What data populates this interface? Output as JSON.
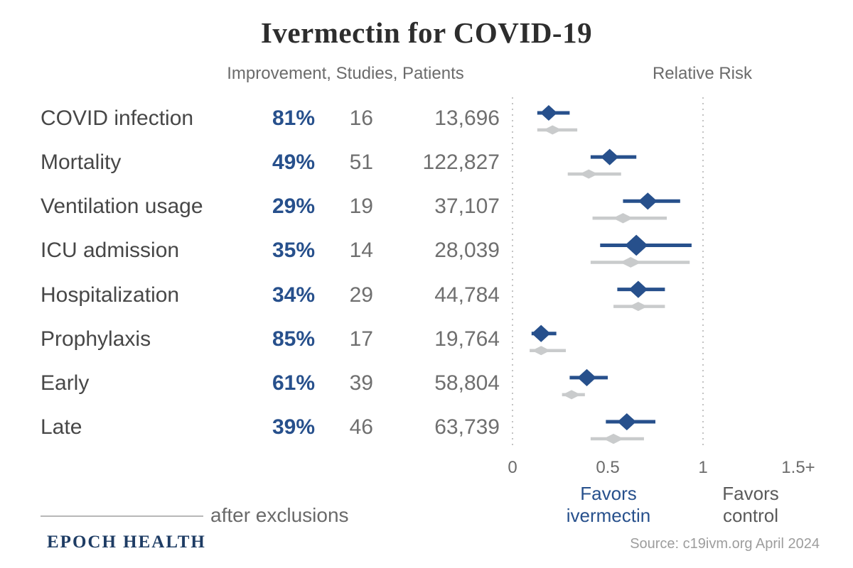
{
  "title": "Ivermectin for COVID-19",
  "table": {
    "header": "Improvement, Studies, Patients",
    "rows": [
      {
        "label": "COVID infection",
        "improvement": "81%",
        "studies": "16",
        "patients": "13,696"
      },
      {
        "label": "Mortality",
        "improvement": "49%",
        "studies": "51",
        "patients": "122,827"
      },
      {
        "label": "Ventilation usage",
        "improvement": "29%",
        "studies": "19",
        "patients": "37,107"
      },
      {
        "label": "ICU admission",
        "improvement": "35%",
        "studies": "14",
        "patients": "28,039"
      },
      {
        "label": "Hospitalization",
        "improvement": "34%",
        "studies": "29",
        "patients": "44,784"
      },
      {
        "label": "Prophylaxis",
        "improvement": "85%",
        "studies": "17",
        "patients": "19,764"
      },
      {
        "label": "Early",
        "improvement": "61%",
        "studies": "39",
        "patients": "58,804"
      },
      {
        "label": "Late",
        "improvement": "39%",
        "studies": "46",
        "patients": "63,739"
      }
    ]
  },
  "chart": {
    "header": "Relative Risk",
    "favors_ivermectin": {
      "line1": "Favors",
      "line2": "ivermectin"
    },
    "favors_control": {
      "line1": "Favors",
      "line2": "control"
    }
  },
  "chart_data": {
    "type": "forest",
    "title": "Relative Risk",
    "categories": [
      "COVID infection",
      "Mortality",
      "Ventilation usage",
      "ICU admission",
      "Hospitalization",
      "Prophylaxis",
      "Early",
      "Late"
    ],
    "x_axis": {
      "label_ticks": [
        {
          "value": 0,
          "label": "0"
        },
        {
          "value": 0.5,
          "label": "0.5"
        },
        {
          "value": 1,
          "label": "1"
        },
        {
          "value": 1.5,
          "label": "1.5+"
        }
      ],
      "range": [
        0,
        1.65
      ],
      "dashed_gridlines": [
        0,
        1
      ]
    },
    "series": [
      {
        "name": "primary",
        "color": "#27508c",
        "points": [
          {
            "rr": 0.19,
            "ci": [
              0.13,
              0.3
            ],
            "scale": 1.0
          },
          {
            "rr": 0.51,
            "ci": [
              0.41,
              0.65
            ],
            "scale": 1.05
          },
          {
            "rr": 0.71,
            "ci": [
              0.58,
              0.88
            ],
            "scale": 1.1
          },
          {
            "rr": 0.65,
            "ci": [
              0.46,
              0.94
            ],
            "scale": 1.35
          },
          {
            "rr": 0.66,
            "ci": [
              0.55,
              0.8
            ],
            "scale": 1.1
          },
          {
            "rr": 0.15,
            "ci": [
              0.1,
              0.23
            ],
            "scale": 1.1
          },
          {
            "rr": 0.39,
            "ci": [
              0.3,
              0.5
            ],
            "scale": 1.1
          },
          {
            "rr": 0.6,
            "ci": [
              0.49,
              0.75
            ],
            "scale": 1.1
          }
        ]
      },
      {
        "name": "after exclusions",
        "color": "#c9cbcc",
        "points": [
          {
            "rr": 0.21,
            "ci": [
              0.13,
              0.34
            ],
            "scale": 1.0
          },
          {
            "rr": 0.4,
            "ci": [
              0.29,
              0.57
            ],
            "scale": 1.0
          },
          {
            "rr": 0.58,
            "ci": [
              0.42,
              0.81
            ],
            "scale": 1.1
          },
          {
            "rr": 0.62,
            "ci": [
              0.41,
              0.93
            ],
            "scale": 1.15
          },
          {
            "rr": 0.66,
            "ci": [
              0.53,
              0.8
            ],
            "scale": 1.0
          },
          {
            "rr": 0.15,
            "ci": [
              0.09,
              0.28
            ],
            "scale": 1.0
          },
          {
            "rr": 0.31,
            "ci": [
              0.26,
              0.38
            ],
            "scale": 1.0
          },
          {
            "rr": 0.53,
            "ci": [
              0.41,
              0.69
            ],
            "scale": 1.1
          }
        ]
      }
    ]
  },
  "legend": {
    "label": "after exclusions"
  },
  "footer": {
    "brand": "EPOCH HEALTH",
    "source": "Source: c19ivm.org April 2024"
  }
}
